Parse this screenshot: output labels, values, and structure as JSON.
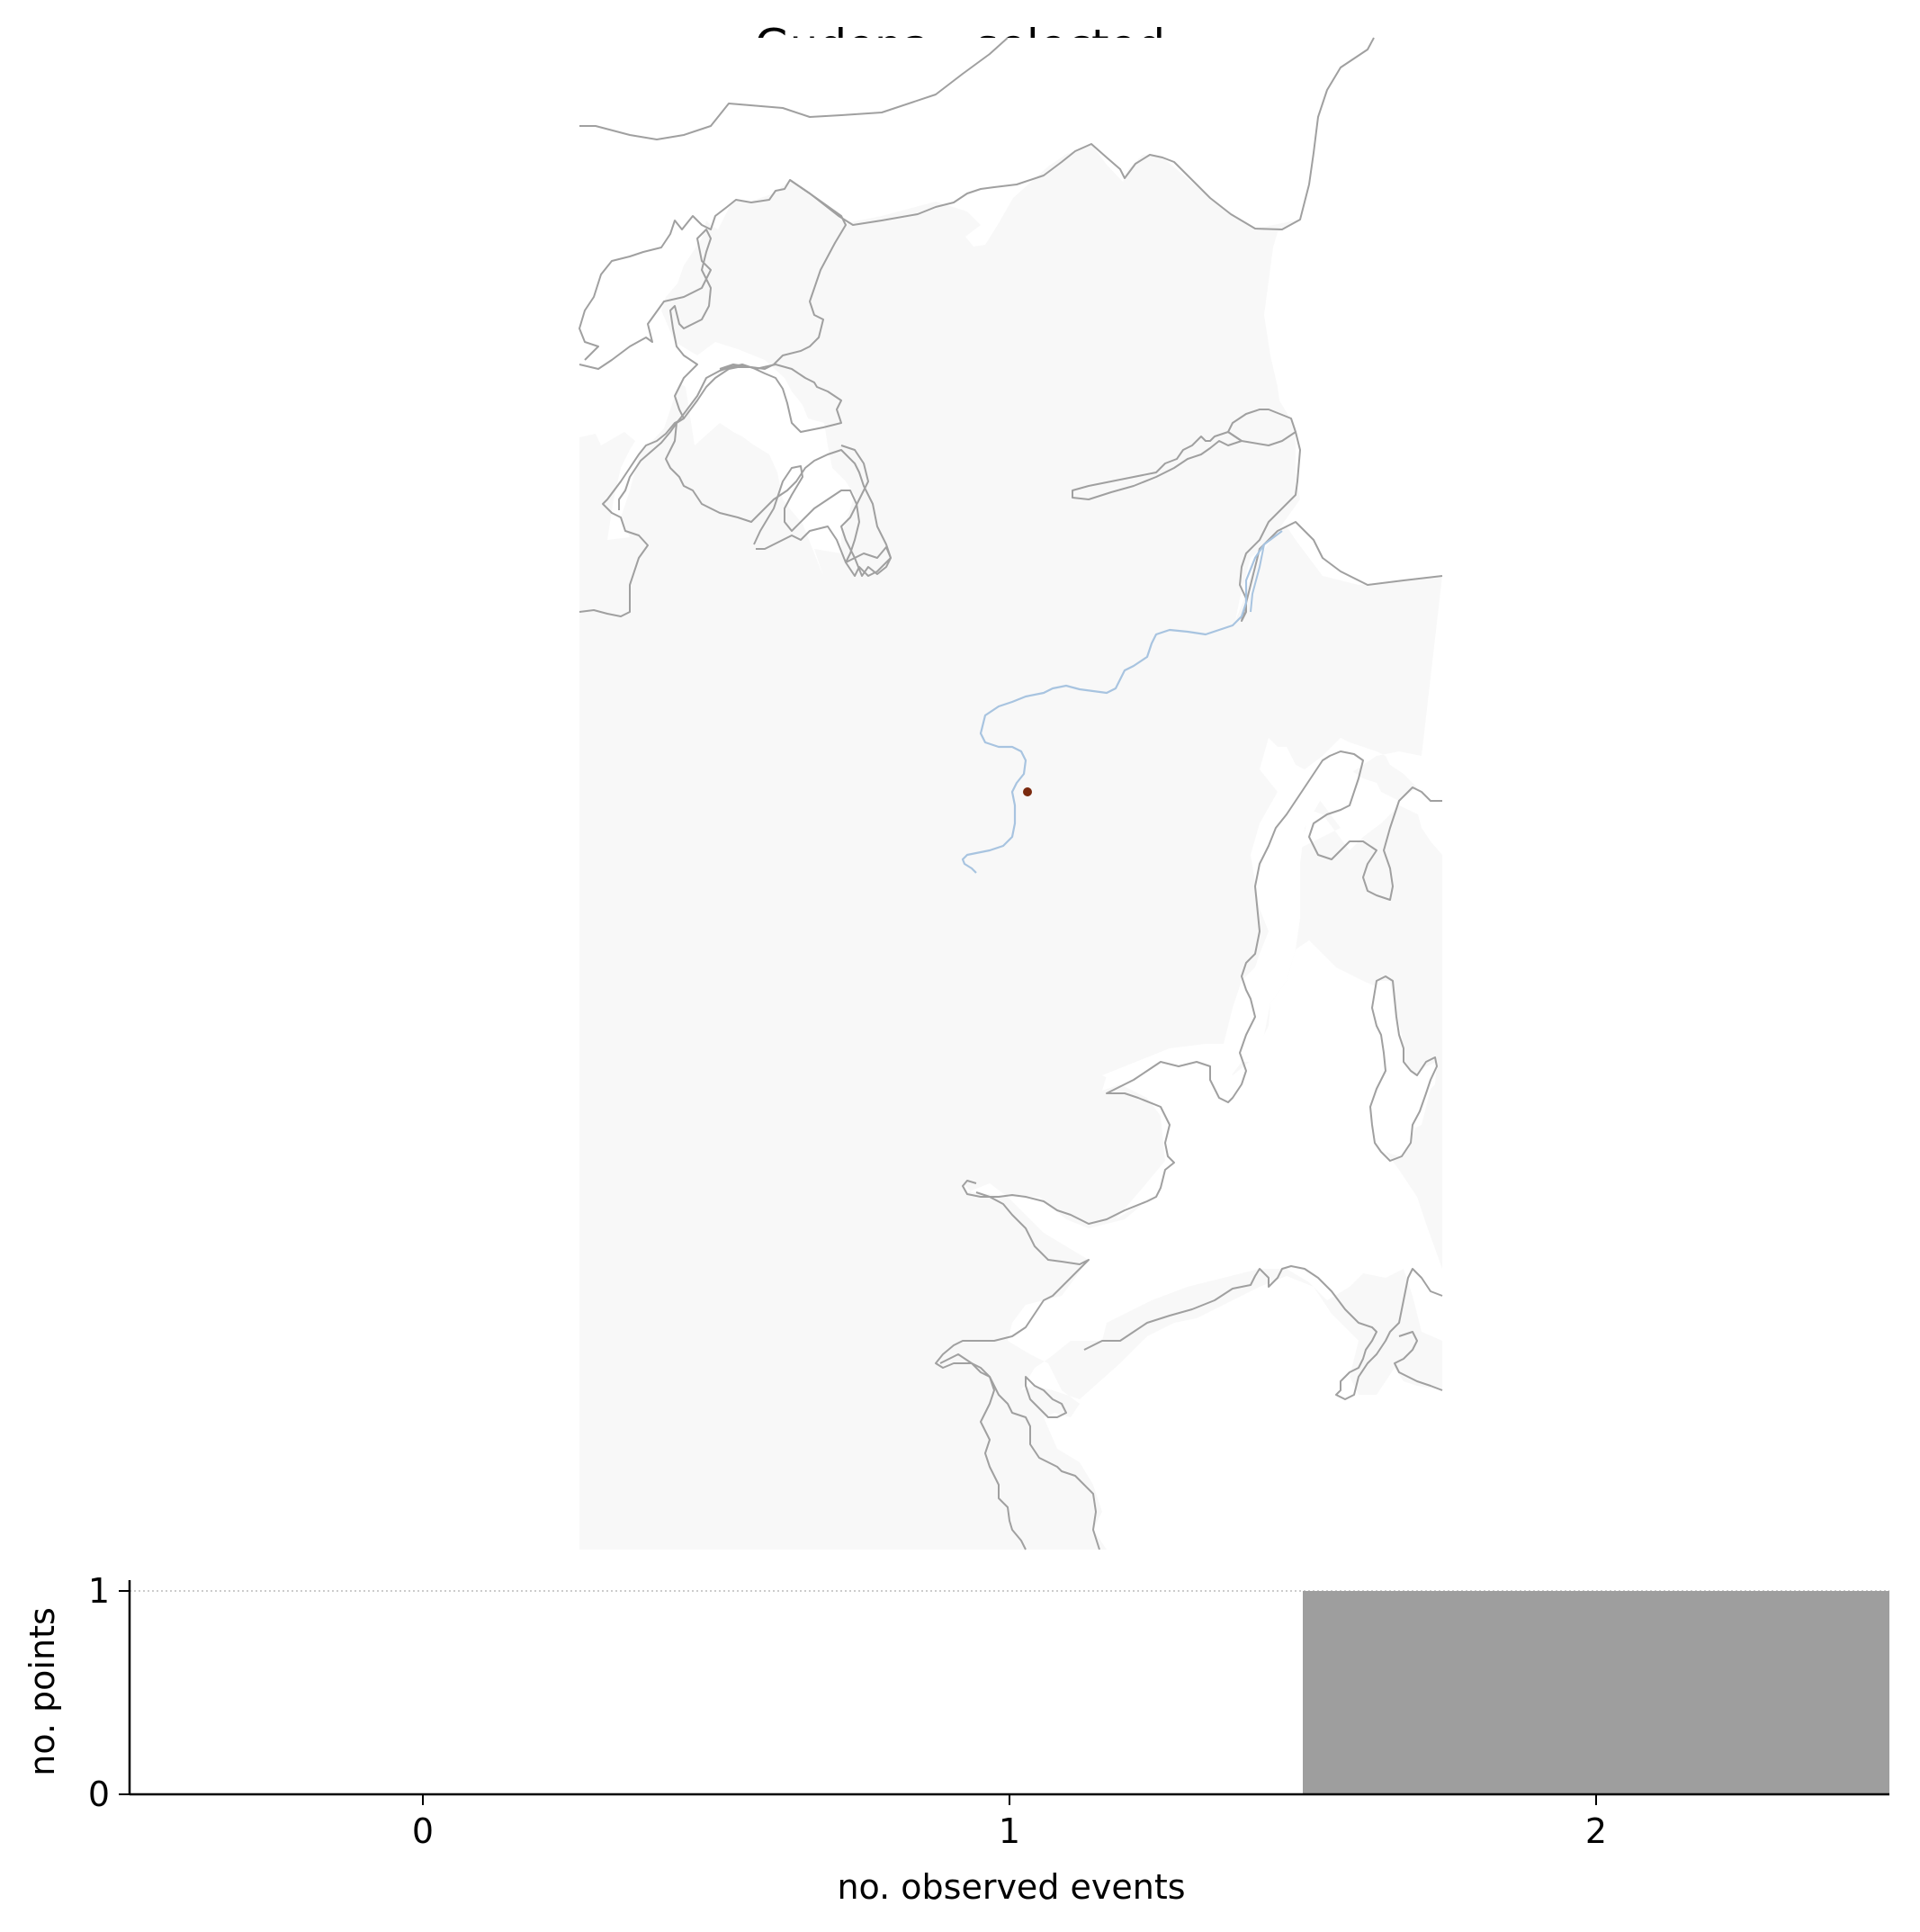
{
  "title": "Gudena - selected",
  "map": {
    "land_color": "#f8f8f8",
    "coast_color": "#a0a0a0",
    "river_color": "#a8c4e0",
    "point_color": "#7a2a0f",
    "points": [
      {
        "label": "",
        "events": 2
      }
    ]
  },
  "chart_data": {
    "type": "bar",
    "title": "",
    "xlabel": "no. observed events",
    "ylabel": "no. points",
    "categories": [
      0,
      1,
      2
    ],
    "x_ticks": [
      "0",
      "1",
      "2"
    ],
    "y_ticks": [
      "0",
      "1"
    ],
    "values": [
      0,
      0,
      1
    ],
    "xlim": [
      -0.5,
      2.5
    ],
    "ylim": [
      0,
      1
    ],
    "bar_color": "#9e9e9e",
    "reference_line": {
      "y": 1,
      "style": "dotted",
      "color": "#bbbbbb"
    },
    "grid": false
  }
}
